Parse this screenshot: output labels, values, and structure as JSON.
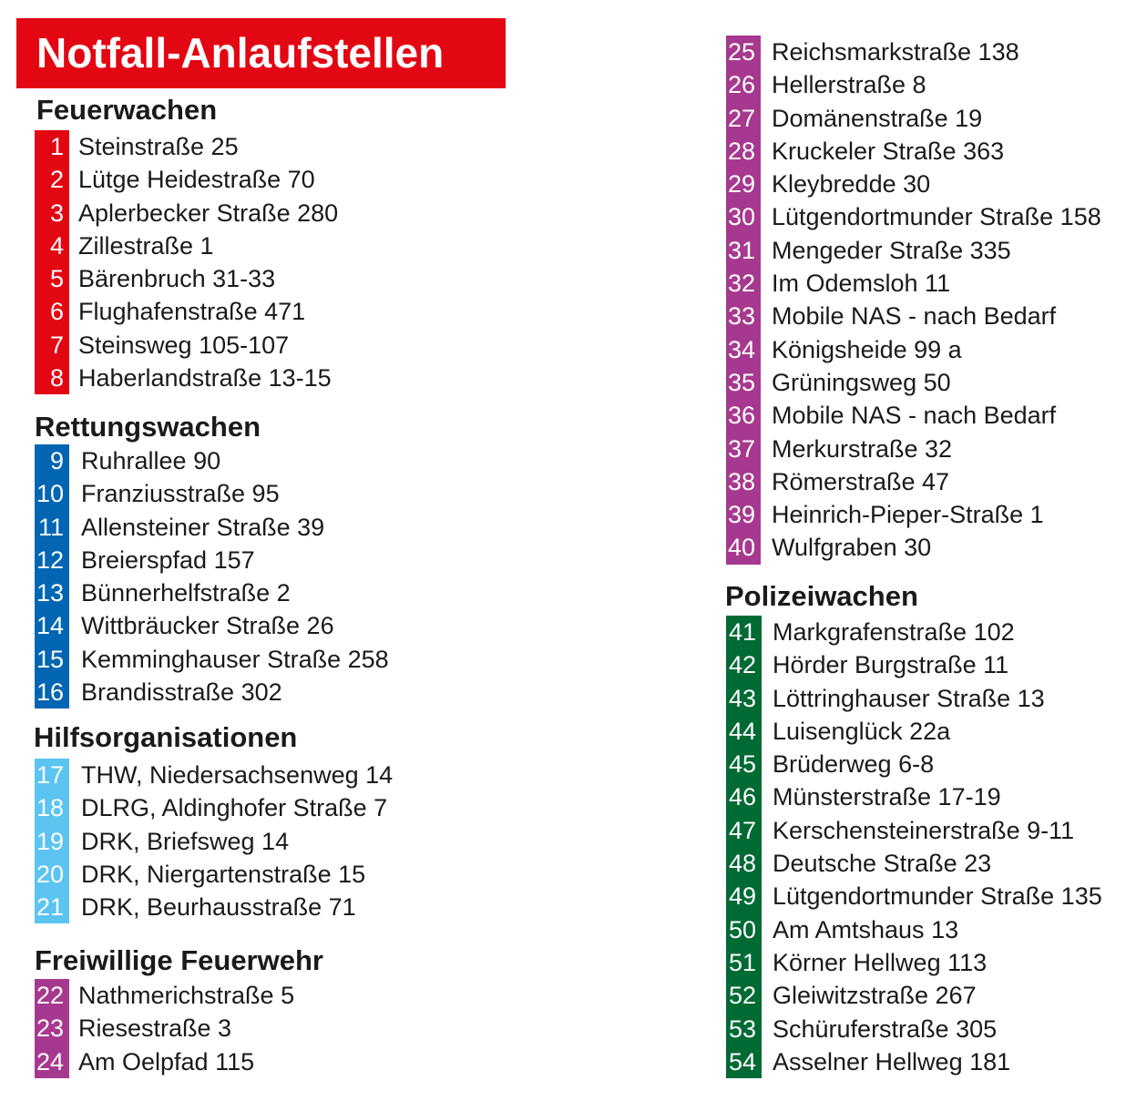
{
  "title": "Notfall-Anlaufstellen",
  "colors": {
    "feuerwachen": "#e30613",
    "rettungswachen": "#0066b3",
    "hilfsorganisationen": "#5bc4f1",
    "freiwillige_feuerwehr": "#a6398f",
    "polizeiwachen": "#006a34"
  },
  "sections": {
    "feuerwachen": {
      "heading": "Feuerwachen",
      "items": [
        {
          "num": "1",
          "address": "Steinstraße 25"
        },
        {
          "num": "2",
          "address": "Lütge Heidestraße 70"
        },
        {
          "num": "3",
          "address": "Aplerbecker Straße 280"
        },
        {
          "num": "4",
          "address": "Zillestraße 1"
        },
        {
          "num": "5",
          "address": "Bärenbruch 31-33"
        },
        {
          "num": "6",
          "address": "Flughafenstraße 471"
        },
        {
          "num": "7",
          "address": "Steinsweg 105-107"
        },
        {
          "num": "8",
          "address": "Haberlandstraße 13-15"
        }
      ]
    },
    "rettungswachen": {
      "heading": "Rettungswachen",
      "items": [
        {
          "num": "9",
          "address": "Ruhrallee 90"
        },
        {
          "num": "10",
          "address": "Franziusstraße 95"
        },
        {
          "num": "11",
          "address": "Allensteiner Straße 39"
        },
        {
          "num": "12",
          "address": "Breierspfad 157"
        },
        {
          "num": "13",
          "address": "Bünnerhelfstraße 2"
        },
        {
          "num": "14",
          "address": "Wittbräucker Straße 26"
        },
        {
          "num": "15",
          "address": "Kemminghauser Straße 258"
        },
        {
          "num": "16",
          "address": "Brandisstraße 302"
        }
      ]
    },
    "hilfsorganisationen": {
      "heading": "Hilfsorganisationen",
      "items": [
        {
          "num": "17",
          "address": "THW, Niedersachsenweg 14"
        },
        {
          "num": "18",
          "address": "DLRG, Aldinghofer Straße 7"
        },
        {
          "num": "19",
          "address": "DRK, Briefsweg 14"
        },
        {
          "num": "20",
          "address": "DRK, Niergartenstraße 15"
        },
        {
          "num": "21",
          "address": "DRK, Beurhausstraße 71"
        }
      ]
    },
    "freiwillige_feuerwehr": {
      "heading": "Freiwillige Feuerwehr",
      "items": [
        {
          "num": "22",
          "address": "Nathmerichstraße 5"
        },
        {
          "num": "23",
          "address": "Riesestraße 3"
        },
        {
          "num": "24",
          "address": "Am Oelpfad 115"
        },
        {
          "num": "25",
          "address": "Reichsmarkstraße 138"
        },
        {
          "num": "26",
          "address": "Hellerstraße 8"
        },
        {
          "num": "27",
          "address": "Domänenstraße 19"
        },
        {
          "num": "28",
          "address": "Kruckeler Straße 363"
        },
        {
          "num": "29",
          "address": "Kleybredde 30"
        },
        {
          "num": "30",
          "address": "Lütgendortmunder Straße 158"
        },
        {
          "num": "31",
          "address": "Mengeder Straße 335"
        },
        {
          "num": "32",
          "address": "Im Odemsloh 11"
        },
        {
          "num": "33",
          "address": "Mobile NAS - nach Bedarf"
        },
        {
          "num": "34",
          "address": "Königsheide 99 a"
        },
        {
          "num": "35",
          "address": "Grüningsweg 50"
        },
        {
          "num": "36",
          "address": "Mobile NAS - nach Bedarf"
        },
        {
          "num": "37",
          "address": "Merkurstraße 32"
        },
        {
          "num": "38",
          "address": "Römerstraße 47"
        },
        {
          "num": "39",
          "address": "Heinrich-Pieper-Straße 1"
        },
        {
          "num": "40",
          "address": "Wulfgraben 30"
        }
      ]
    },
    "polizeiwachen": {
      "heading": "Polizeiwachen",
      "items": [
        {
          "num": "41",
          "address": "Markgrafenstraße 102"
        },
        {
          "num": "42",
          "address": "Hörder Burgstraße 11"
        },
        {
          "num": "43",
          "address": "Löttringhauser Straße 13"
        },
        {
          "num": "44",
          "address": "Luisenglück 22a"
        },
        {
          "num": "45",
          "address": "Brüderweg 6-8"
        },
        {
          "num": "46",
          "address": "Münsterstraße 17-19"
        },
        {
          "num": "47",
          "address": "Kerschensteinerstraße 9-11"
        },
        {
          "num": "48",
          "address": "Deutsche Straße 23"
        },
        {
          "num": "49",
          "address": "Lütgendortmunder Straße 135"
        },
        {
          "num": "50",
          "address": "Am Amtshaus 13"
        },
        {
          "num": "51",
          "address": "Körner Hellweg 113"
        },
        {
          "num": "52",
          "address": "Gleiwitzstraße 267"
        },
        {
          "num": "53",
          "address": "Schüruferstraße 305"
        },
        {
          "num": "54",
          "address": "Asselner Hellweg 181"
        }
      ]
    }
  }
}
